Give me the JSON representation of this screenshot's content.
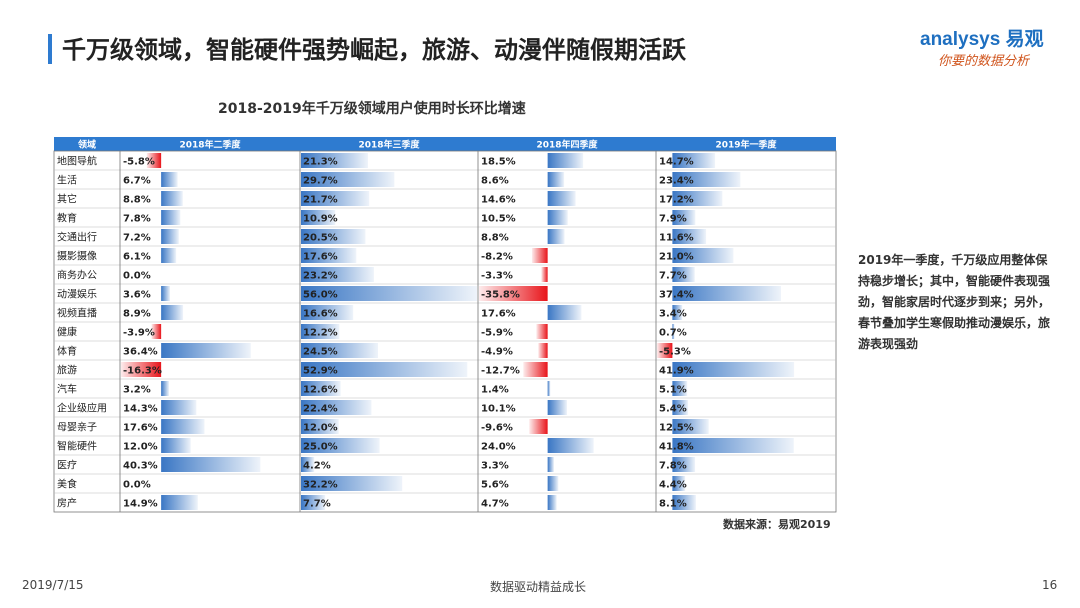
{
  "header": {
    "title": "千万级领域，智能硬件强势崛起，旅游、动漫伴随假期活跃",
    "logo_main": "analysys 易观",
    "logo_sub": "你要的数据分析"
  },
  "chart_data": {
    "type": "table",
    "title": "2018-2019年千万级领域用户使用时长环比增速",
    "column_header_first": "领域",
    "columns": [
      "2018年二季度",
      "2018年三季度",
      "2018年四季度",
      "2019年一季度"
    ],
    "rows": [
      {
        "name": "地图导航",
        "values": [
          -5.8,
          21.3,
          18.5,
          14.7
        ],
        "labels": [
          "-5.8%",
          "21.3%",
          "18.5%",
          "14.7%"
        ]
      },
      {
        "name": "生活",
        "values": [
          6.7,
          29.7,
          8.6,
          23.4
        ],
        "labels": [
          "6.7%",
          "29.7%",
          "8.6%",
          "23.4%"
        ]
      },
      {
        "name": "其它",
        "values": [
          8.8,
          21.7,
          14.6,
          17.2
        ],
        "labels": [
          "8.8%",
          "21.7%",
          "14.6%",
          "17.2%"
        ]
      },
      {
        "name": "教育",
        "values": [
          7.8,
          10.9,
          10.5,
          7.9
        ],
        "labels": [
          "7.8%",
          "10.9%",
          "10.5%",
          "7.9%"
        ]
      },
      {
        "name": "交通出行",
        "values": [
          7.2,
          20.5,
          8.8,
          11.6
        ],
        "labels": [
          "7.2%",
          "20.5%",
          "8.8%",
          "11.6%"
        ]
      },
      {
        "name": "摄影摄像",
        "values": [
          6.1,
          17.6,
          -8.2,
          21.0
        ],
        "labels": [
          "6.1%",
          "17.6%",
          "-8.2%",
          "21.0%"
        ]
      },
      {
        "name": "商务办公",
        "values": [
          0.0,
          23.2,
          -3.3,
          7.7
        ],
        "labels": [
          "0.0%",
          "23.2%",
          "-3.3%",
          "7.7%"
        ]
      },
      {
        "name": "动漫娱乐",
        "values": [
          3.6,
          56.0,
          -35.8,
          37.4
        ],
        "labels": [
          "3.6%",
          "56.0%",
          "-35.8%",
          "37.4%"
        ]
      },
      {
        "name": "视频直播",
        "values": [
          8.9,
          16.6,
          17.6,
          3.4
        ],
        "labels": [
          "8.9%",
          "16.6%",
          "17.6%",
          "3.4%"
        ]
      },
      {
        "name": "健康",
        "values": [
          -3.9,
          12.2,
          -5.9,
          0.7
        ],
        "labels": [
          "-3.9%",
          "12.2%",
          "-5.9%",
          "0.7%"
        ]
      },
      {
        "name": "体育",
        "values": [
          36.4,
          24.5,
          -4.9,
          -5.3
        ],
        "labels": [
          "36.4%",
          "24.5%",
          "-4.9%",
          "-5.3%"
        ]
      },
      {
        "name": "旅游",
        "values": [
          -16.3,
          52.9,
          -12.7,
          41.9
        ],
        "labels": [
          "-16.3%",
          "52.9%",
          "-12.7%",
          "41.9%"
        ]
      },
      {
        "name": "汽车",
        "values": [
          3.2,
          12.6,
          1.4,
          5.1
        ],
        "labels": [
          "3.2%",
          "12.6%",
          "1.4%",
          "5.1%"
        ]
      },
      {
        "name": "企业级应用",
        "values": [
          14.3,
          22.4,
          10.1,
          5.4
        ],
        "labels": [
          "14.3%",
          "22.4%",
          "10.1%",
          "5.4%"
        ]
      },
      {
        "name": "母婴亲子",
        "values": [
          17.6,
          12.0,
          -9.6,
          12.5
        ],
        "labels": [
          "17.6%",
          "12.0%",
          "-9.6%",
          "12.5%"
        ]
      },
      {
        "name": "智能硬件",
        "values": [
          12.0,
          25.0,
          24.0,
          41.8
        ],
        "labels": [
          "12.0%",
          "25.0%",
          "24.0%",
          "41.8%"
        ]
      },
      {
        "name": "医疗",
        "values": [
          40.3,
          4.2,
          3.3,
          7.8
        ],
        "labels": [
          "40.3%",
          "4.2%",
          "3.3%",
          "7.8%"
        ]
      },
      {
        "name": "美食",
        "values": [
          0.0,
          32.2,
          5.6,
          4.4
        ],
        "labels": [
          "0.0%",
          "32.2%",
          "5.6%",
          "4.4%"
        ]
      },
      {
        "name": "房产",
        "values": [
          14.9,
          7.7,
          4.7,
          8.1
        ],
        "labels": [
          "14.9%",
          "7.7%",
          "4.7%",
          "8.1%"
        ]
      }
    ],
    "scale_max": 56.0,
    "positive_color": "#2f6fc1",
    "negative_color": "#e8141a",
    "header_color": "#2e7bd0"
  },
  "source": "数据来源：易观2019",
  "commentary": "2019年一季度，千万级应用整体保持稳步增长；其中，智能硬件表现强劲，智能家居时代逐步到来；另外，春节叠加学生寒假助推动漫娱乐，旅游表现强劲",
  "footer": {
    "date": "2019/7/15",
    "center": "数据驱动精益成长",
    "page": "16"
  }
}
